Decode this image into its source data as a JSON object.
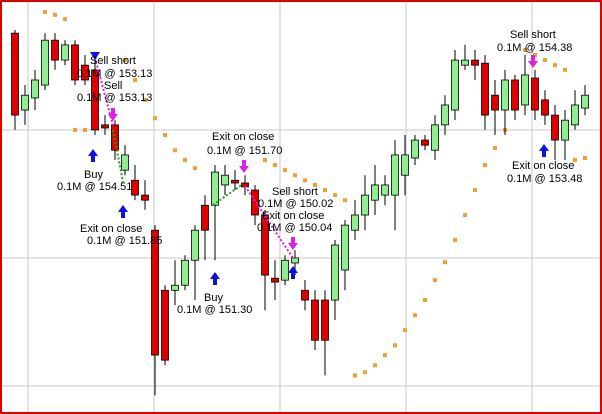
{
  "chart_data": {
    "type": "candlestick",
    "ylim": [
      145.82,
      156.43
    ],
    "up_color": "#90ee90",
    "down_color": "#e00000",
    "sar_color": "#f0a030",
    "ohlc": [
      [
        155.58,
        155.66,
        153.1,
        153.48
      ],
      [
        153.61,
        154.25,
        153.23,
        153.99
      ],
      [
        153.92,
        154.64,
        153.61,
        154.38
      ],
      [
        154.25,
        155.58,
        154.12,
        155.4
      ],
      [
        155.4,
        155.58,
        154.64,
        154.89
      ],
      [
        154.89,
        155.4,
        154.76,
        155.28
      ],
      [
        155.28,
        155.4,
        154.25,
        154.38
      ],
      [
        154.76,
        155.02,
        154.25,
        154.38
      ],
      [
        154.64,
        154.89,
        152.97,
        153.1
      ],
      [
        153.23,
        153.48,
        152.97,
        153.15
      ],
      [
        153.23,
        153.35,
        152.33,
        152.58
      ],
      [
        152.07,
        152.71,
        151.94,
        152.46
      ],
      [
        151.81,
        152.2,
        151.3,
        151.43
      ],
      [
        151.43,
        151.81,
        151.05,
        151.3
      ],
      [
        150.53,
        150.66,
        146.3,
        147.33
      ],
      [
        148.99,
        149.12,
        147.07,
        147.2
      ],
      [
        148.99,
        149.76,
        148.61,
        149.12
      ],
      [
        149.12,
        149.89,
        148.99,
        149.76
      ],
      [
        149.76,
        150.66,
        148.74,
        150.53
      ],
      [
        151.17,
        151.43,
        149.76,
        150.53
      ],
      [
        151.17,
        152.2,
        149.76,
        152.02
      ],
      [
        151.69,
        152.2,
        151.43,
        151.94
      ],
      [
        151.81,
        152.07,
        151.56,
        151.74
      ],
      [
        151.74,
        151.94,
        151.43,
        151.64
      ],
      [
        151.56,
        151.69,
        150.66,
        150.92
      ],
      [
        150.92,
        151.05,
        148.48,
        149.38
      ],
      [
        149.3,
        149.76,
        148.74,
        149.2
      ],
      [
        149.25,
        149.89,
        149.12,
        149.76
      ],
      [
        149.69,
        150.02,
        149.38,
        149.82
      ],
      [
        148.99,
        149.25,
        148.48,
        148.74
      ],
      [
        148.74,
        148.99,
        147.46,
        147.71
      ],
      [
        148.74,
        148.99,
        146.81,
        147.71
      ],
      [
        148.74,
        150.28,
        148.23,
        150.15
      ],
      [
        149.51,
        150.79,
        148.99,
        150.66
      ],
      [
        150.53,
        151.3,
        150.28,
        150.92
      ],
      [
        150.92,
        151.94,
        150.53,
        151.43
      ],
      [
        151.3,
        152.2,
        150.92,
        151.69
      ],
      [
        151.43,
        151.94,
        151.17,
        151.69
      ],
      [
        151.43,
        152.84,
        150.53,
        152.46
      ],
      [
        151.94,
        152.97,
        151.43,
        152.46
      ],
      [
        152.38,
        152.97,
        152.2,
        152.84
      ],
      [
        152.84,
        152.97,
        152.58,
        152.71
      ],
      [
        152.58,
        153.48,
        152.33,
        153.23
      ],
      [
        153.23,
        153.99,
        152.97,
        153.74
      ],
      [
        153.61,
        155.15,
        153.35,
        154.89
      ],
      [
        154.76,
        155.28,
        154.64,
        154.89
      ],
      [
        154.89,
        155.15,
        154.38,
        154.76
      ],
      [
        154.81,
        155.02,
        153.1,
        153.48
      ],
      [
        153.99,
        154.38,
        152.97,
        153.61
      ],
      [
        153.61,
        154.64,
        152.97,
        154.38
      ],
      [
        154.38,
        154.51,
        153.35,
        153.61
      ],
      [
        153.74,
        155.02,
        153.48,
        154.51
      ],
      [
        154.43,
        154.64,
        153.35,
        153.61
      ],
      [
        153.87,
        154.12,
        153.23,
        153.48
      ],
      [
        153.48,
        153.74,
        152.33,
        152.84
      ],
      [
        152.84,
        153.61,
        152.33,
        153.35
      ],
      [
        153.23,
        154.12,
        153.1,
        153.74
      ],
      [
        153.66,
        154.25,
        153.48,
        153.99
      ]
    ],
    "sar": [
      null,
      null,
      null,
      156.12,
      156.05,
      155.94,
      153.1,
      153.1,
      153.15,
      null,
      null,
      154.89,
      154.38,
      153.87,
      153.4,
      152.97,
      152.58,
      152.33,
      152.12,
      null,
      null,
      null,
      null,
      null,
      null,
      152.33,
      152.2,
      152.07,
      151.94,
      151.81,
      151.69,
      151.56,
      151.43,
      151.3,
      146.81,
      146.89,
      147.07,
      147.33,
      147.58,
      147.97,
      148.35,
      148.74,
      149.25,
      149.71,
      150.28,
      150.92,
      151.56,
      152.2,
      152.64,
      153.1,
      null,
      155.15,
      155.02,
      154.89,
      154.76,
      154.64,
      152.33,
      152.38
    ],
    "annotations": [
      [
        "Sell short",
        "0.1M @ 153.13"
      ],
      [
        "Sell",
        "0.1M @ 153.13"
      ],
      [
        "Buy",
        "0.1M @ 154.51"
      ],
      [
        "Exit on close",
        "0.1M @ 151.85"
      ],
      [
        "Exit on close",
        "0.1M @ 151.70"
      ],
      [
        "Sell short",
        "0.1M @ 150.02"
      ],
      [
        "Exit on close",
        "0.1M @ 150.04"
      ],
      [
        "Buy",
        "0.1M @ 151.30"
      ],
      [
        "Sell short",
        "0.1M @ 154.38"
      ],
      [
        "Exit on close",
        "0.1M @ 153.48"
      ]
    ]
  }
}
